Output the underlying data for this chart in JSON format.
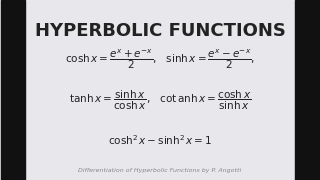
{
  "title": "HYPERBOLIC FUNCTIONS",
  "title_fontsize": 13,
  "title_color": "#222222",
  "bg_color": "#e8e8ec",
  "text_color": "#222222",
  "formula1": "$\\cosh x = \\dfrac{e^{x}+e^{-x}}{2}$,   $\\sinh x = \\dfrac{e^{x}-e^{-x}}{2}$,",
  "formula2": "$\\tanh x = \\dfrac{\\sinh x}{\\cosh x}$,   $\\cot\\mathrm{anh}\\, x = \\dfrac{\\cosh x}{\\sinh x}$",
  "formula3": "$\\cosh^{2}x - \\sinh^{2}x = 1$",
  "footer": "Differentiation of Hyperbolic Functions by P. Angotti",
  "footer_fontsize": 4.5,
  "footer_color": "#888888",
  "black_bar_color": "#111111",
  "left_bar_width": 25,
  "right_bar_width": 25
}
